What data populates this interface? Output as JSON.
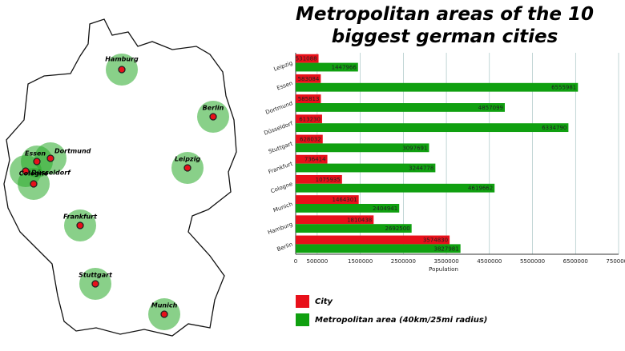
{
  "chart_data": {
    "type": "bar",
    "orientation": "horizontal",
    "title": "Metropolitan areas of the 10 biggest german cities",
    "categories": [
      "Leipzig",
      "Essen",
      "Dortmund",
      "Düsseldorf",
      "Stuttgart",
      "Frankfurt",
      "Cologne",
      "Munich",
      "Hamburg",
      "Berlin"
    ],
    "series": [
      {
        "name": "City",
        "color": "#e8101a",
        "values": [
          531088,
          583084,
          585813,
          613230,
          628032,
          736414,
          1075935,
          1464301,
          1810438,
          3574830
        ]
      },
      {
        "name": "Metropolitan area (40km/25mi radius)",
        "color": "#10a010",
        "values": [
          1447966,
          6555981,
          4857099,
          6334790,
          3097691,
          3244778,
          4619662,
          2404941,
          2692500,
          3827981
        ]
      }
    ],
    "xlabel": "Population",
    "xlim": [
      0,
      7500000
    ],
    "xticks": [
      0,
      500000,
      1500000,
      2500000,
      3500000,
      4500000,
      5500000,
      6500000,
      7500000
    ],
    "grid": true
  },
  "map": {
    "cities": [
      "Hamburg",
      "Berlin",
      "Leipzig",
      "Dortmund",
      "Essen",
      "Düsseldorf",
      "Cologne",
      "Frankfurt",
      "Stuttgart",
      "Munich"
    ]
  }
}
